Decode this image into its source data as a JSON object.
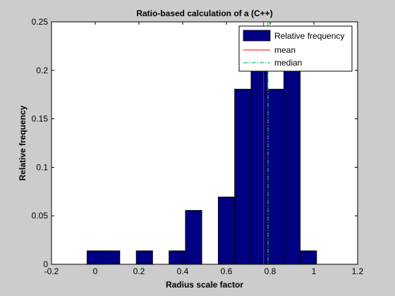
{
  "chart_data": {
    "type": "bar",
    "title": "Ratio-based calculation of a (C++)",
    "xlabel": "Radius scale factor",
    "ylabel": "Relative frequency",
    "xlim": [
      -0.2,
      1.2
    ],
    "ylim": [
      0,
      0.25
    ],
    "xticks": [
      "-0.2",
      "0",
      "0.2",
      "0.4",
      "0.6",
      "0.8",
      "1",
      "1.2"
    ],
    "yticks": [
      "0",
      "0.05",
      "0.1",
      "0.15",
      "0.2",
      "0.25"
    ],
    "bin_width": 0.075,
    "bins": [
      {
        "center": 0.0,
        "value": 0.0139
      },
      {
        "center": 0.075,
        "value": 0.0139
      },
      {
        "center": 0.15,
        "value": 0.0
      },
      {
        "center": 0.225,
        "value": 0.0139
      },
      {
        "center": 0.3,
        "value": 0.0
      },
      {
        "center": 0.375,
        "value": 0.0139
      },
      {
        "center": 0.45,
        "value": 0.0556
      },
      {
        "center": 0.525,
        "value": 0.0
      },
      {
        "center": 0.6,
        "value": 0.0694
      },
      {
        "center": 0.675,
        "value": 0.1806
      },
      {
        "center": 0.75,
        "value": 0.2083
      },
      {
        "center": 0.825,
        "value": 0.1806
      },
      {
        "center": 0.9,
        "value": 0.2083
      },
      {
        "center": 0.975,
        "value": 0.0139
      }
    ],
    "series": [
      {
        "name": "Relative frequency",
        "kind": "bar",
        "color": "#000080"
      },
      {
        "name": "mean",
        "kind": "vline",
        "x": 0.77,
        "color": "#ff0000"
      },
      {
        "name": "median",
        "kind": "vline",
        "x": 0.79,
        "color": "#00cc66"
      }
    ],
    "legend_position": "top-right",
    "grid": false
  }
}
